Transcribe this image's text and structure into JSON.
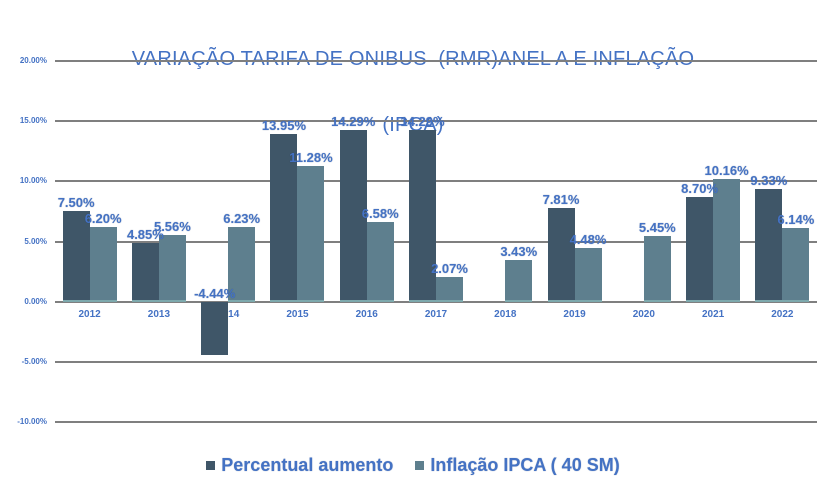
{
  "colors": {
    "background": "#ffffff",
    "text_blue": "#4472c4",
    "grid": "#7f7f7f",
    "series_dark": "#3f5668",
    "series_light": "#5e7f8e"
  },
  "chart_data": {
    "type": "bar",
    "title": "VARIAÇÃO TARIFA DE ONIBUS  (RMR)ANEL A E INFLAÇÃO (IPCA)",
    "title_lines": [
      "VARIAÇÃO TARIFA DE ONIBUS  (RMR)ANEL A E INFLAÇÃO",
      "(IPCA)"
    ],
    "categories": [
      "2012",
      "2013",
      "2014",
      "2015",
      "2016",
      "2017",
      "2018",
      "2019",
      "2020",
      "2021",
      "2022"
    ],
    "series": [
      {
        "name": "Percentual aumento",
        "color": "#3f5668",
        "values": [
          7.5,
          4.85,
          -4.44,
          13.95,
          14.29,
          14.29,
          0,
          7.81,
          0,
          8.7,
          9.33
        ],
        "labels": [
          "7.50%",
          "4.85%",
          "-4.44%",
          "13.95%",
          "14.29%",
          "14.29%",
          "",
          "7.81%",
          "",
          "8.70%",
          "9.33%"
        ]
      },
      {
        "name": "Inflação IPCA ( 40 SM)",
        "color": "#5e7f8e",
        "values": [
          6.2,
          5.56,
          6.23,
          11.28,
          6.58,
          2.07,
          3.43,
          4.48,
          5.45,
          10.16,
          6.14
        ],
        "labels": [
          "6.20%",
          "5.56%",
          "6.23%",
          "11.28%",
          "6.58%",
          "2.07%",
          "3.43%",
          "4.48%",
          "5.45%",
          "10.16%",
          "6.14%"
        ]
      }
    ],
    "y_ticks": [
      {
        "label": "20.00%",
        "value": 20
      },
      {
        "label": "15.00%",
        "value": 15
      },
      {
        "label": "10.00%",
        "value": 10
      },
      {
        "label": "5.00%",
        "value": 5
      },
      {
        "label": "0.00%",
        "value": 0
      },
      {
        "label": "-5.00%",
        "value": -5
      },
      {
        "label": "-10.00%",
        "value": -10
      }
    ],
    "ylim": [
      -10,
      20
    ],
    "grid": true,
    "legend_position": "bottom"
  }
}
